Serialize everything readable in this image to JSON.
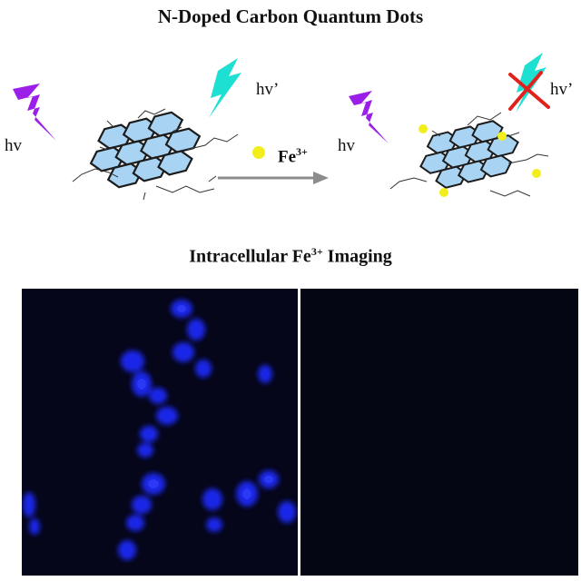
{
  "title": "N-Doped Carbon Quantum Dots",
  "labels": {
    "hv": "hv",
    "hv_prime": "hv’",
    "fe_base": "Fe",
    "fe_charge": "3+"
  },
  "imaging": {
    "prefix": "Intracellular Fe",
    "charge": "3+",
    "suffix": " Imaging"
  },
  "colors": {
    "lightning_purple": "#9b1fe8",
    "lightning_cyan": "#1ee0d2",
    "sheet_fill": "#a9d3f2",
    "ion_yellow": "#f2ee1c",
    "cross_red": "#e0221c",
    "arrow_gray": "#8c8c8c",
    "cell_blue": "#1f2bff"
  }
}
